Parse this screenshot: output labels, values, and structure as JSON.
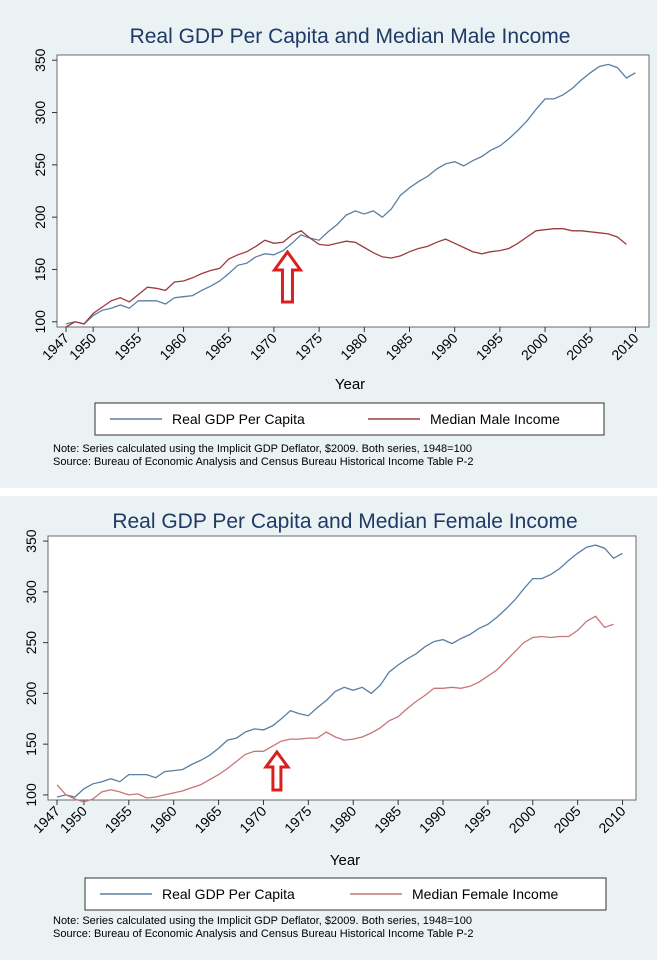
{
  "colors": {
    "gdp": "#5b7ea3",
    "male": "#9c3b3f",
    "female": "#c8757a",
    "arrow": "#d9201e",
    "background": "#eaf2f3"
  },
  "chart_data": [
    {
      "type": "line",
      "title": "Real GDP Per Capita and Median Male Income",
      "xlabel": "Year",
      "ylabel": "",
      "xlim": [
        1947,
        2010
      ],
      "ylim": [
        95,
        355
      ],
      "xticks": [
        "1947",
        "1950",
        "1955",
        "1960",
        "1965",
        "1970",
        "1975",
        "1980",
        "1985",
        "1990",
        "1995",
        "2000",
        "2005",
        "2010"
      ],
      "yticks": [
        "100",
        "150",
        "200",
        "250",
        "300",
        "350"
      ],
      "annotation": {
        "type": "arrow-up",
        "year": 1971.5,
        "label": ""
      },
      "note": "Note: Series calculated using the Implicit GDP Deflator, $2009. Both series, 1948=100",
      "source": "Source: Bureau of Economic Analysis and Census Bureau Historical Income Table P-2",
      "series": [
        {
          "name": "Real GDP Per Capita",
          "color": "#5b7ea3",
          "x": [
            1947,
            1948,
            1949,
            1950,
            1951,
            1952,
            1953,
            1954,
            1955,
            1956,
            1957,
            1958,
            1959,
            1960,
            1961,
            1962,
            1963,
            1964,
            1965,
            1966,
            1967,
            1968,
            1969,
            1970,
            1971,
            1972,
            1973,
            1974,
            1975,
            1976,
            1977,
            1978,
            1979,
            1980,
            1981,
            1982,
            1983,
            1984,
            1985,
            1986,
            1987,
            1988,
            1989,
            1990,
            1991,
            1992,
            1993,
            1994,
            1995,
            1996,
            1997,
            1998,
            1999,
            2000,
            2001,
            2002,
            2003,
            2004,
            2005,
            2006,
            2007,
            2008,
            2009,
            2010
          ],
          "y": [
            98,
            100,
            98,
            106,
            111,
            113,
            116,
            113,
            120,
            120,
            120,
            117,
            123,
            124,
            125,
            130,
            134,
            139,
            146,
            154,
            156,
            162,
            165,
            164,
            168,
            175,
            183,
            180,
            178,
            186,
            193,
            202,
            206,
            203,
            206,
            200,
            208,
            221,
            228,
            234,
            239,
            246,
            251,
            253,
            249,
            254,
            258,
            264,
            268,
            275,
            283,
            292,
            303,
            313,
            313,
            317,
            323,
            331,
            338,
            344,
            346,
            343,
            333,
            338
          ]
        },
        {
          "name": "Median Male Income",
          "color": "#9c3b3f",
          "x": [
            1947,
            1948,
            1949,
            1950,
            1951,
            1952,
            1953,
            1954,
            1955,
            1956,
            1957,
            1958,
            1959,
            1960,
            1961,
            1962,
            1963,
            1964,
            1965,
            1966,
            1967,
            1968,
            1969,
            1970,
            1971,
            1972,
            1973,
            1974,
            1975,
            1976,
            1977,
            1978,
            1979,
            1980,
            1981,
            1982,
            1983,
            1984,
            1985,
            1986,
            1987,
            1988,
            1989,
            1990,
            1991,
            1992,
            1993,
            1994,
            1995,
            1996,
            1997,
            1998,
            1999,
            2000,
            2001,
            2002,
            2003,
            2004,
            2005,
            2006,
            2007,
            2008,
            2009
          ],
          "y": [
            95,
            100,
            98,
            108,
            114,
            120,
            123,
            119,
            126,
            133,
            132,
            130,
            138,
            139,
            142,
            146,
            149,
            151,
            160,
            164,
            167,
            172,
            178,
            175,
            176,
            183,
            187,
            180,
            174,
            173,
            175,
            177,
            176,
            171,
            166,
            162,
            161,
            163,
            167,
            170,
            172,
            176,
            179,
            175,
            171,
            167,
            165,
            167,
            168,
            170,
            175,
            181,
            187,
            188,
            189,
            189,
            187,
            187,
            186,
            185,
            184,
            181,
            174
          ]
        }
      ]
    },
    {
      "type": "line",
      "title": "Real GDP Per Capita and Median Female Income",
      "xlabel": "Year",
      "ylabel": "",
      "xlim": [
        1947,
        2010
      ],
      "ylim": [
        95,
        355
      ],
      "xticks": [
        "1947",
        "1950",
        "1955",
        "1960",
        "1965",
        "1970",
        "1975",
        "1980",
        "1985",
        "1990",
        "1995",
        "2000",
        "2005",
        "2010"
      ],
      "yticks": [
        "100",
        "150",
        "200",
        "250",
        "300",
        "350"
      ],
      "annotation": {
        "type": "arrow-up",
        "year": 1971.5,
        "label": ""
      },
      "note": "Note: Series calculated using the Implicit GDP Deflator, $2009. Both series, 1948=100",
      "source": "Source: Bureau of Economic Analysis and Census Bureau Historical Income Table P-2",
      "series": [
        {
          "name": "Real GDP Per Capita",
          "color": "#5b7ea3",
          "x": [
            1947,
            1948,
            1949,
            1950,
            1951,
            1952,
            1953,
            1954,
            1955,
            1956,
            1957,
            1958,
            1959,
            1960,
            1961,
            1962,
            1963,
            1964,
            1965,
            1966,
            1967,
            1968,
            1969,
            1970,
            1971,
            1972,
            1973,
            1974,
            1975,
            1976,
            1977,
            1978,
            1979,
            1980,
            1981,
            1982,
            1983,
            1984,
            1985,
            1986,
            1987,
            1988,
            1989,
            1990,
            1991,
            1992,
            1993,
            1994,
            1995,
            1996,
            1997,
            1998,
            1999,
            2000,
            2001,
            2002,
            2003,
            2004,
            2005,
            2006,
            2007,
            2008,
            2009,
            2010
          ],
          "y": [
            98,
            100,
            98,
            106,
            111,
            113,
            116,
            113,
            120,
            120,
            120,
            117,
            123,
            124,
            125,
            130,
            134,
            139,
            146,
            154,
            156,
            162,
            165,
            164,
            168,
            175,
            183,
            180,
            178,
            186,
            193,
            202,
            206,
            203,
            206,
            200,
            208,
            221,
            228,
            234,
            239,
            246,
            251,
            253,
            249,
            254,
            258,
            264,
            268,
            275,
            283,
            292,
            303,
            313,
            313,
            317,
            323,
            331,
            338,
            344,
            346,
            343,
            333,
            338
          ]
        },
        {
          "name": "Median Female Income",
          "color": "#c8757a",
          "x": [
            1947,
            1948,
            1949,
            1950,
            1951,
            1952,
            1953,
            1954,
            1955,
            1956,
            1957,
            1958,
            1959,
            1960,
            1961,
            1962,
            1963,
            1964,
            1965,
            1966,
            1967,
            1968,
            1969,
            1970,
            1971,
            1972,
            1973,
            1974,
            1975,
            1976,
            1977,
            1978,
            1979,
            1980,
            1981,
            1982,
            1983,
            1984,
            1985,
            1986,
            1987,
            1988,
            1989,
            1990,
            1991,
            1992,
            1993,
            1994,
            1995,
            1996,
            1997,
            1998,
            1999,
            2000,
            2001,
            2002,
            2003,
            2004,
            2005,
            2006,
            2007,
            2008,
            2009
          ],
          "y": [
            110,
            100,
            96,
            93,
            96,
            103,
            105,
            103,
            100,
            101,
            97,
            98,
            100,
            102,
            104,
            107,
            110,
            115,
            120,
            126,
            133,
            140,
            143,
            143,
            148,
            153,
            155,
            155,
            156,
            156,
            162,
            157,
            154,
            155,
            157,
            161,
            166,
            173,
            177,
            185,
            192,
            198,
            205,
            205,
            206,
            205,
            207,
            211,
            217,
            223,
            232,
            241,
            250,
            255,
            256,
            255,
            256,
            256,
            262,
            271,
            276,
            265,
            268
          ]
        }
      ]
    }
  ]
}
